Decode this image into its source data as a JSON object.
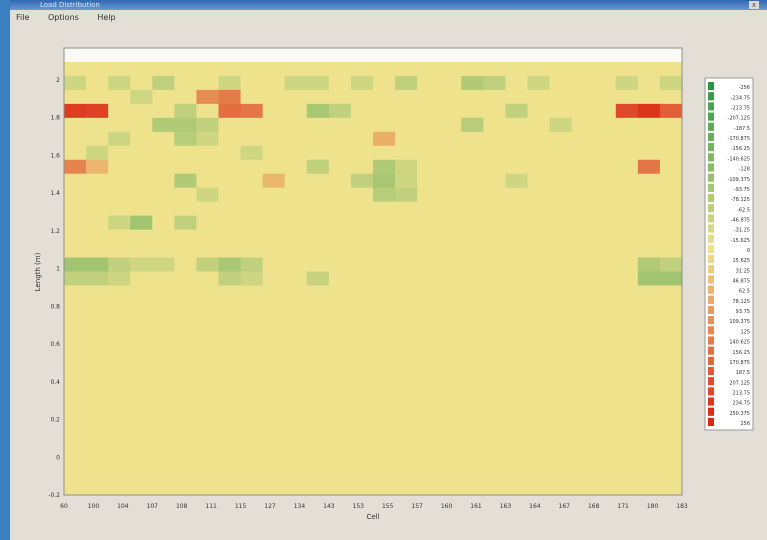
{
  "window": {
    "title": "Load Distribution",
    "close_label": "x"
  },
  "menu": [
    {
      "label": "File"
    },
    {
      "label": "Options"
    },
    {
      "label": "Help"
    }
  ],
  "chart_data": {
    "type": "heatmap",
    "title": "",
    "xlabel": "Cell",
    "ylabel": "Length (m)",
    "ylim": [
      -0.2,
      2.1
    ],
    "y_ticks": [
      "2",
      "1.8",
      "1.6",
      "1.4",
      "1.2",
      "1",
      "0.8",
      "0.6",
      "0.4",
      "0.2",
      "0",
      "-0.2"
    ],
    "x_ticks": [
      "60",
      "100",
      "104",
      "107",
      "108",
      "111",
      "115",
      "127",
      "134",
      "143",
      "153",
      "155",
      "157",
      "160",
      "161",
      "163",
      "164",
      "167",
      "168",
      "171",
      "180",
      "183"
    ],
    "legend": {
      "placement": "right",
      "entries": [
        "-256",
        "-234.75",
        "-213.75",
        "-207.125",
        "-187.5",
        "-170.875",
        "-156.25",
        "-140.625",
        "-128",
        "-109.375",
        "-93.75",
        "-78.125",
        "-62.5",
        "-46.875",
        "-31.25",
        "-15.625",
        "0",
        "15.625",
        "31.25",
        "46.875",
        "62.5",
        "78.125",
        "93.75",
        "109.375",
        "125",
        "140.625",
        "156.25",
        "170.875",
        "187.5",
        "207.125",
        "213.75",
        "234.75",
        "250.375",
        "256"
      ]
    },
    "rows": 32,
    "cols": 28,
    "values": [
      [
        0,
        0,
        0,
        0,
        0,
        0,
        0,
        0,
        0,
        0,
        0,
        0,
        0,
        0,
        0,
        0,
        0,
        0,
        0,
        0,
        0,
        0,
        0,
        0,
        0,
        0,
        0,
        0
      ],
      [
        0,
        0,
        0,
        0,
        0,
        0,
        0,
        0,
        0,
        0,
        0,
        0,
        0,
        0,
        0,
        0,
        0,
        0,
        0,
        0,
        0,
        0,
        0,
        0,
        0,
        0,
        0,
        0
      ],
      [
        -40,
        0,
        -40,
        0,
        -60,
        0,
        0,
        -40,
        0,
        0,
        -40,
        -40,
        0,
        -40,
        0,
        -60,
        0,
        0,
        -80,
        -60,
        0,
        -40,
        0,
        0,
        0,
        -40,
        0,
        -40
      ],
      [
        0,
        0,
        0,
        -40,
        0,
        0,
        120,
        140,
        0,
        0,
        0,
        0,
        0,
        0,
        0,
        0,
        0,
        0,
        0,
        0,
        0,
        0,
        0,
        0,
        0,
        0,
        0,
        0
      ],
      [
        230,
        220,
        0,
        0,
        0,
        -60,
        0,
        160,
        150,
        0,
        0,
        -90,
        -60,
        0,
        0,
        0,
        0,
        0,
        0,
        0,
        -60,
        0,
        0,
        0,
        0,
        210,
        240,
        180
      ],
      [
        0,
        0,
        0,
        0,
        -80,
        -80,
        -60,
        0,
        0,
        0,
        0,
        0,
        0,
        0,
        0,
        0,
        0,
        0,
        -70,
        0,
        0,
        0,
        -40,
        0,
        0,
        0,
        0,
        0
      ],
      [
        0,
        0,
        -40,
        0,
        0,
        -70,
        -40,
        0,
        0,
        0,
        0,
        0,
        0,
        0,
        70,
        0,
        0,
        0,
        0,
        0,
        0,
        0,
        0,
        0,
        0,
        0,
        0,
        0
      ],
      [
        0,
        -40,
        0,
        0,
        0,
        0,
        0,
        0,
        -40,
        0,
        0,
        0,
        0,
        0,
        0,
        0,
        0,
        0,
        0,
        0,
        0,
        0,
        0,
        0,
        0,
        0,
        0,
        0
      ],
      [
        130,
        60,
        0,
        0,
        0,
        0,
        0,
        0,
        0,
        0,
        0,
        -60,
        0,
        0,
        -80,
        -40,
        0,
        0,
        0,
        0,
        0,
        0,
        0,
        0,
        0,
        0,
        150,
        0
      ],
      [
        0,
        0,
        0,
        0,
        0,
        -80,
        0,
        0,
        0,
        60,
        0,
        0,
        0,
        -60,
        -90,
        -40,
        0,
        0,
        0,
        0,
        -40,
        0,
        0,
        0,
        0,
        0,
        0,
        0
      ],
      [
        0,
        0,
        0,
        0,
        0,
        0,
        -40,
        0,
        0,
        0,
        0,
        0,
        0,
        0,
        -70,
        -60,
        0,
        0,
        0,
        0,
        0,
        0,
        0,
        0,
        0,
        0,
        0,
        0
      ],
      [
        0,
        0,
        0,
        0,
        0,
        0,
        0,
        0,
        0,
        0,
        0,
        0,
        0,
        0,
        0,
        0,
        0,
        0,
        0,
        0,
        0,
        0,
        0,
        0,
        0,
        0,
        0,
        0
      ],
      [
        0,
        0,
        -40,
        -100,
        0,
        -60,
        0,
        0,
        0,
        0,
        0,
        0,
        0,
        0,
        0,
        0,
        0,
        0,
        0,
        0,
        0,
        0,
        0,
        0,
        0,
        0,
        0,
        0
      ],
      [
        0,
        0,
        0,
        0,
        0,
        0,
        0,
        0,
        0,
        0,
        0,
        0,
        0,
        0,
        0,
        0,
        0,
        0,
        0,
        0,
        0,
        0,
        0,
        0,
        0,
        0,
        0,
        0
      ],
      [
        0,
        0,
        0,
        0,
        0,
        0,
        0,
        0,
        0,
        0,
        0,
        0,
        0,
        0,
        0,
        0,
        0,
        0,
        0,
        0,
        0,
        0,
        0,
        0,
        0,
        0,
        0,
        0
      ],
      [
        -100,
        -100,
        -60,
        -40,
        -40,
        0,
        -60,
        -90,
        -60,
        0,
        0,
        0,
        0,
        0,
        0,
        0,
        0,
        0,
        0,
        0,
        0,
        0,
        0,
        0,
        0,
        0,
        -80,
        -60
      ],
      [
        -60,
        -60,
        -40,
        0,
        0,
        0,
        0,
        -60,
        -40,
        0,
        0,
        -50,
        0,
        0,
        0,
        0,
        0,
        0,
        0,
        0,
        0,
        0,
        0,
        0,
        0,
        0,
        -100,
        -100
      ],
      [
        0,
        0,
        0,
        0,
        0,
        0,
        0,
        0,
        0,
        0,
        0,
        0,
        0,
        0,
        0,
        0,
        0,
        0,
        0,
        0,
        0,
        0,
        0,
        0,
        0,
        0,
        0,
        0
      ],
      [
        0,
        0,
        0,
        0,
        0,
        0,
        0,
        0,
        0,
        0,
        0,
        0,
        0,
        0,
        0,
        0,
        0,
        0,
        0,
        0,
        0,
        0,
        0,
        0,
        0,
        0,
        0,
        0
      ],
      [
        0,
        0,
        0,
        0,
        0,
        0,
        0,
        0,
        0,
        0,
        0,
        0,
        0,
        0,
        0,
        0,
        0,
        0,
        0,
        0,
        0,
        0,
        0,
        0,
        0,
        0,
        0,
        0
      ],
      [
        0,
        0,
        0,
        0,
        0,
        0,
        0,
        0,
        0,
        0,
        0,
        0,
        0,
        0,
        0,
        0,
        0,
        0,
        0,
        0,
        0,
        0,
        0,
        0,
        0,
        0,
        0,
        0
      ],
      [
        0,
        0,
        0,
        0,
        0,
        0,
        0,
        0,
        0,
        0,
        0,
        0,
        0,
        0,
        0,
        0,
        0,
        0,
        0,
        0,
        0,
        0,
        0,
        0,
        0,
        0,
        0,
        0
      ],
      [
        0,
        0,
        0,
        0,
        0,
        0,
        0,
        0,
        0,
        0,
        0,
        0,
        0,
        0,
        0,
        0,
        0,
        0,
        0,
        0,
        0,
        0,
        0,
        0,
        0,
        0,
        0,
        0
      ],
      [
        0,
        0,
        0,
        0,
        0,
        0,
        0,
        0,
        0,
        0,
        0,
        0,
        0,
        0,
        0,
        0,
        0,
        0,
        0,
        0,
        0,
        0,
        0,
        0,
        0,
        0,
        0,
        0
      ],
      [
        0,
        0,
        0,
        0,
        0,
        0,
        0,
        0,
        0,
        0,
        0,
        0,
        0,
        0,
        0,
        0,
        0,
        0,
        0,
        0,
        0,
        0,
        0,
        0,
        0,
        0,
        0,
        0
      ],
      [
        0,
        0,
        0,
        0,
        0,
        0,
        0,
        0,
        0,
        0,
        0,
        0,
        0,
        0,
        0,
        0,
        0,
        0,
        0,
        0,
        0,
        0,
        0,
        0,
        0,
        0,
        0,
        0
      ],
      [
        0,
        0,
        0,
        0,
        0,
        0,
        0,
        0,
        0,
        0,
        0,
        0,
        0,
        0,
        0,
        0,
        0,
        0,
        0,
        0,
        0,
        0,
        0,
        0,
        0,
        0,
        0,
        0
      ],
      [
        0,
        0,
        0,
        0,
        0,
        0,
        0,
        0,
        0,
        0,
        0,
        0,
        0,
        0,
        0,
        0,
        0,
        0,
        0,
        0,
        0,
        0,
        0,
        0,
        0,
        0,
        0,
        0
      ],
      [
        0,
        0,
        0,
        0,
        0,
        0,
        0,
        0,
        0,
        0,
        0,
        0,
        0,
        0,
        0,
        0,
        0,
        0,
        0,
        0,
        0,
        0,
        0,
        0,
        0,
        0,
        0,
        0
      ],
      [
        0,
        0,
        0,
        0,
        0,
        0,
        0,
        0,
        0,
        0,
        0,
        0,
        0,
        0,
        0,
        0,
        0,
        0,
        0,
        0,
        0,
        0,
        0,
        0,
        0,
        0,
        0,
        0
      ],
      [
        0,
        0,
        0,
        0,
        0,
        0,
        0,
        0,
        0,
        0,
        0,
        0,
        0,
        0,
        0,
        0,
        0,
        0,
        0,
        0,
        0,
        0,
        0,
        0,
        0,
        0,
        0,
        0
      ],
      [
        0,
        0,
        0,
        0,
        0,
        0,
        0,
        0,
        0,
        0,
        0,
        0,
        0,
        0,
        0,
        0,
        0,
        0,
        0,
        0,
        0,
        0,
        0,
        0,
        0,
        0,
        0,
        0
      ]
    ]
  }
}
